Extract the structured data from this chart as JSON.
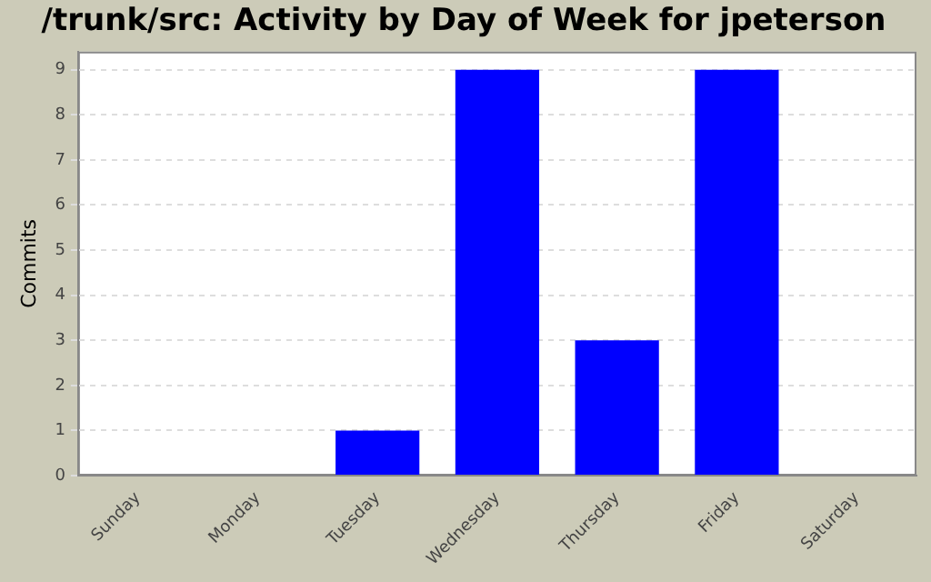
{
  "chart_data": {
    "type": "bar",
    "title": "/trunk/src: Activity by Day of Week for jpeterson",
    "ylabel": "Commits",
    "categories": [
      "Sunday",
      "Monday",
      "Tuesday",
      "Wednesday",
      "Thursday",
      "Friday",
      "Saturday"
    ],
    "values": [
      0,
      0,
      1,
      9,
      3,
      9,
      0
    ],
    "color": "#0000ff",
    "ylim": [
      0,
      9.4
    ],
    "yticks": [
      0,
      1,
      2,
      3,
      4,
      5,
      6,
      7,
      8,
      9
    ],
    "grid": "y",
    "legend": false
  }
}
